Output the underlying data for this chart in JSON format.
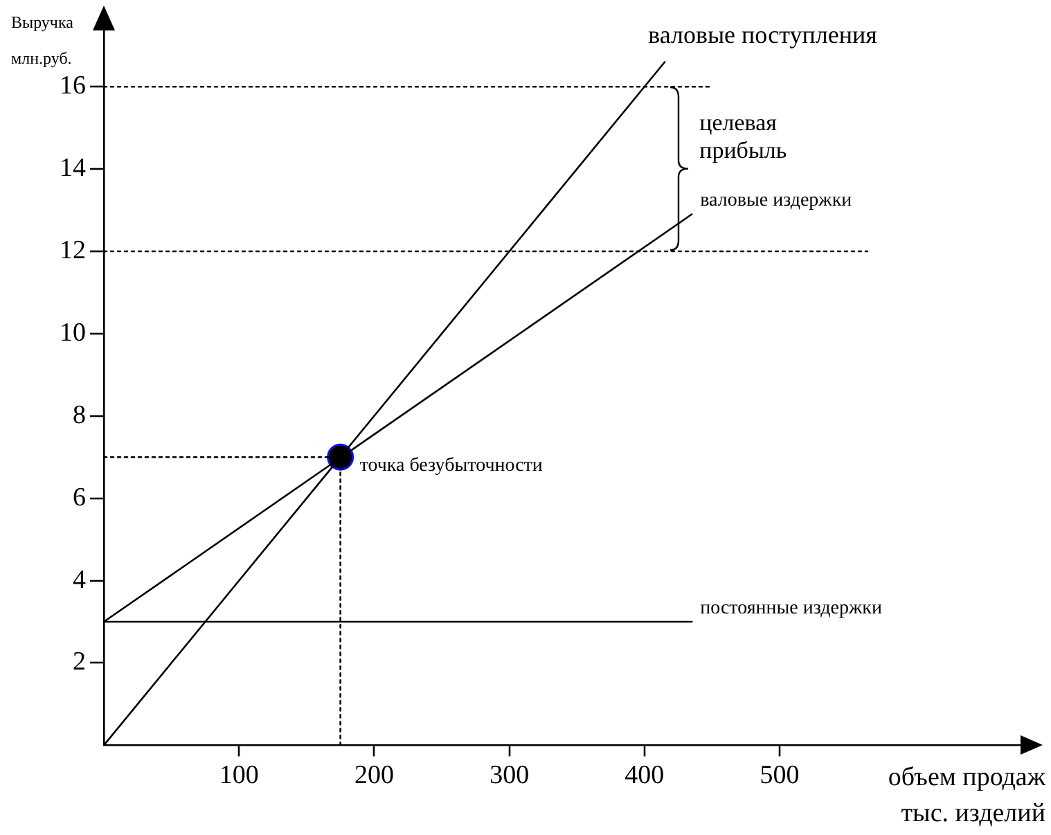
{
  "chart_data": {
    "type": "line",
    "xlabel": "объем продаж тыс. изделий",
    "ylabel": "Выручка млн.руб.",
    "xlim": [
      0,
      690
    ],
    "xticks": [
      100,
      200,
      300,
      400,
      500
    ],
    "ylim": [
      0,
      17.5
    ],
    "yticks": [
      2,
      4,
      6,
      8,
      10,
      12,
      14,
      16
    ],
    "grid": false,
    "legend": false,
    "marker": "none",
    "line_style": "solid",
    "series": [
      {
        "name": "валовые поступления",
        "color": "#000000",
        "x": [
          0,
          415
        ],
        "values": [
          0,
          16.6
        ]
      },
      {
        "name": "валовые издержки",
        "color": "#000000",
        "x": [
          0,
          435
        ],
        "values": [
          3,
          12.9
        ]
      },
      {
        "name": "постоянные издержки",
        "color": "#000000",
        "x": [
          0,
          435
        ],
        "values": [
          3,
          3
        ]
      },
      {
        "color": "#000000",
        "x": [
          0,
          450
        ],
        "values": [
          16,
          16
        ],
        "line_style": "dotted"
      },
      {
        "color": "#000000",
        "x": [
          0,
          565
        ],
        "values": [
          12,
          12
        ],
        "line_style": "dotted"
      },
      {
        "color": "#000000",
        "x": [
          0,
          175
        ],
        "values": [
          7,
          7
        ],
        "line_style": "dotted"
      },
      {
        "color": "#000000",
        "x": [
          175,
          175
        ],
        "values": [
          0,
          7
        ],
        "line_style": "dotted"
      },
      {
        "name": "точка безубыточности",
        "type": "scatter",
        "marker": "circle",
        "color": "#000000",
        "x": [
          175
        ],
        "values": [
          7
        ]
      }
    ],
    "annotations": [
      "целевая прибыль"
    ]
  }
}
